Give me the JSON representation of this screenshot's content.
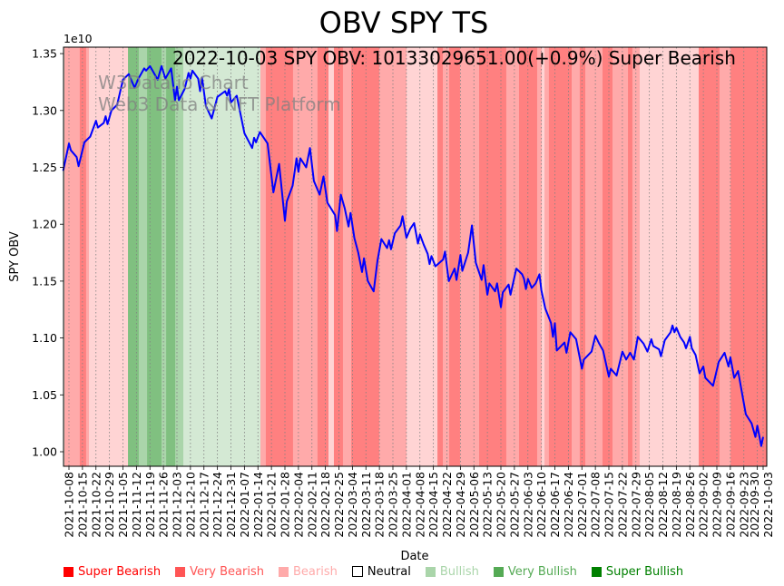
{
  "chart_data": {
    "type": "line",
    "title": "OBV SPY TS",
    "xlabel": "Date",
    "ylabel": "SPY OBV",
    "y_offset_label": "1e10",
    "ylim": [
      0.9872,
      1.3556
    ],
    "y_ticks": [
      "1.00",
      "1.05",
      "1.10",
      "1.15",
      "1.20",
      "1.25",
      "1.30",
      "1.35"
    ],
    "y_tick_values": [
      1.0,
      1.05,
      1.1,
      1.15,
      1.2,
      1.25,
      1.3,
      1.35
    ],
    "x_origin_date": "2021-10-08",
    "x_unit": "days since 2021-10-08",
    "xlim_days": [
      -2.8,
      362
    ],
    "x_tick_labels": [
      "2021-10-08",
      "2021-10-15",
      "2021-10-22",
      "2021-10-29",
      "2021-11-05",
      "2021-11-12",
      "2021-11-19",
      "2021-11-26",
      "2021-12-03",
      "2021-12-10",
      "2021-12-17",
      "2021-12-24",
      "2021-12-31",
      "2022-01-07",
      "2022-01-14",
      "2022-01-21",
      "2022-01-28",
      "2022-02-04",
      "2022-02-11",
      "2022-02-18",
      "2022-02-25",
      "2022-03-04",
      "2022-03-11",
      "2022-03-18",
      "2022-03-25",
      "2022-04-01",
      "2022-04-08",
      "2022-04-15",
      "2022-04-22",
      "2022-04-29",
      "2022-05-06",
      "2022-05-13",
      "2022-05-20",
      "2022-05-27",
      "2022-06-03",
      "2022-06-10",
      "2022-06-17",
      "2022-06-24",
      "2022-07-01",
      "2022-07-08",
      "2022-07-15",
      "2022-07-22",
      "2022-07-29",
      "2022-08-05",
      "2022-08-12",
      "2022-08-19",
      "2022-08-26",
      "2022-09-02",
      "2022-09-09",
      "2022-09-16",
      "2022-09-23",
      "2022-09-30",
      "2022-10-03"
    ],
    "x_tick_days": [
      0,
      7,
      14,
      21,
      28,
      35,
      42,
      49,
      56,
      63,
      70,
      77,
      84,
      91,
      98,
      105,
      112,
      119,
      126,
      133,
      140,
      147,
      154,
      161,
      168,
      175,
      182,
      189,
      196,
      203,
      210,
      217,
      224,
      231,
      238,
      245,
      252,
      259,
      266,
      273,
      280,
      287,
      294,
      301,
      308,
      315,
      322,
      329,
      336,
      343,
      350,
      357,
      360
    ],
    "grid": "vertical dotted at x ticks",
    "series": [
      {
        "name": "SPY OBV",
        "color": "#0000ff",
        "x_days": [
          -3,
          0,
          1,
          4,
          5,
          8,
          11,
          14,
          15,
          18,
          19,
          20,
          22,
          25,
          28,
          31,
          34,
          36,
          39,
          40,
          42,
          46,
          48,
          50,
          53,
          55,
          56,
          57,
          60,
          62,
          63,
          64,
          67,
          68,
          69,
          71,
          74,
          77,
          81,
          82,
          83,
          84,
          87,
          91,
          95,
          96,
          97,
          99,
          103,
          106,
          109,
          112,
          113,
          116,
          118,
          119,
          120,
          123,
          125,
          127,
          130,
          132,
          134,
          138,
          139,
          141,
          143,
          145,
          146,
          148,
          150,
          152,
          153,
          155,
          158,
          160,
          162,
          165,
          166,
          167,
          169,
          172,
          173,
          175,
          177,
          179,
          181,
          182,
          184,
          186,
          187,
          188,
          190,
          194,
          195,
          197,
          200,
          201,
          203,
          204,
          207,
          209,
          211,
          214,
          215,
          217,
          218,
          221,
          222,
          224,
          225,
          228,
          229,
          232,
          235,
          236,
          237,
          238,
          240,
          242,
          244,
          245,
          247,
          250,
          251,
          252,
          253,
          257,
          258,
          260,
          263,
          266,
          267,
          271,
          273,
          275,
          277,
          280,
          281,
          284,
          287,
          289,
          291,
          293,
          295,
          298,
          300,
          302,
          303,
          306,
          307,
          309,
          312,
          313,
          314,
          315,
          317,
          319,
          320,
          322,
          323,
          325,
          327,
          329,
          330,
          334,
          337,
          340,
          342,
          343,
          345,
          347,
          351,
          354,
          356,
          357,
          359,
          360
        ],
        "values": [
          1.247,
          1.271,
          1.265,
          1.259,
          1.251,
          1.272,
          1.277,
          1.291,
          1.285,
          1.289,
          1.295,
          1.288,
          1.3,
          1.305,
          1.327,
          1.332,
          1.32,
          1.328,
          1.337,
          1.335,
          1.339,
          1.327,
          1.339,
          1.328,
          1.337,
          1.309,
          1.321,
          1.309,
          1.319,
          1.333,
          1.328,
          1.335,
          1.328,
          1.317,
          1.329,
          1.304,
          1.293,
          1.312,
          1.317,
          1.313,
          1.319,
          1.307,
          1.313,
          1.28,
          1.267,
          1.276,
          1.272,
          1.281,
          1.271,
          1.228,
          1.253,
          1.203,
          1.22,
          1.234,
          1.258,
          1.246,
          1.258,
          1.25,
          1.267,
          1.238,
          1.226,
          1.242,
          1.219,
          1.208,
          1.194,
          1.226,
          1.214,
          1.198,
          1.21,
          1.188,
          1.175,
          1.158,
          1.17,
          1.15,
          1.141,
          1.168,
          1.187,
          1.179,
          1.186,
          1.178,
          1.192,
          1.199,
          1.207,
          1.188,
          1.196,
          1.201,
          1.183,
          1.191,
          1.182,
          1.174,
          1.165,
          1.172,
          1.163,
          1.169,
          1.176,
          1.15,
          1.161,
          1.151,
          1.173,
          1.159,
          1.175,
          1.199,
          1.166,
          1.151,
          1.164,
          1.138,
          1.148,
          1.141,
          1.148,
          1.127,
          1.14,
          1.147,
          1.138,
          1.161,
          1.156,
          1.152,
          1.143,
          1.152,
          1.144,
          1.148,
          1.156,
          1.142,
          1.126,
          1.113,
          1.101,
          1.113,
          1.089,
          1.096,
          1.087,
          1.105,
          1.099,
          1.073,
          1.081,
          1.088,
          1.102,
          1.095,
          1.089,
          1.066,
          1.073,
          1.067,
          1.088,
          1.081,
          1.087,
          1.081,
          1.101,
          1.095,
          1.088,
          1.099,
          1.093,
          1.09,
          1.084,
          1.098,
          1.105,
          1.111,
          1.105,
          1.109,
          1.101,
          1.096,
          1.091,
          1.101,
          1.091,
          1.085,
          1.069,
          1.075,
          1.065,
          1.058,
          1.079,
          1.087,
          1.075,
          1.083,
          1.065,
          1.071,
          1.033,
          1.025,
          1.013,
          1.023,
          1.005,
          1.013
        ]
      }
    ],
    "sentiment_colors": {
      "Super Bearish": "#ff8080",
      "Very Bearish": "#ffaaaa",
      "Bearish": "#ffd4d4",
      "Bullish": "#d4e9d4",
      "Very Bullish": "#aad5aa",
      "Super Bullish": "#80c080"
    },
    "sentiment_bands": [
      {
        "start": -2.8,
        "end": -2.4,
        "level": "Bullish"
      },
      {
        "start": -2.4,
        "end": 5.6,
        "level": "Very Bearish"
      },
      {
        "start": 5.6,
        "end": 8.9,
        "level": "Super Bearish"
      },
      {
        "start": 8.9,
        "end": 10.4,
        "level": "Very Bearish"
      },
      {
        "start": 10.4,
        "end": 30.6,
        "level": "Bearish"
      },
      {
        "start": 30.6,
        "end": 36.2,
        "level": "Super Bullish"
      },
      {
        "start": 36.2,
        "end": 40.5,
        "level": "Very Bullish"
      },
      {
        "start": 40.5,
        "end": 48,
        "level": "Super Bullish"
      },
      {
        "start": 48,
        "end": 50.4,
        "level": "Very Bullish"
      },
      {
        "start": 50.4,
        "end": 55.1,
        "level": "Super Bullish"
      },
      {
        "start": 55.1,
        "end": 59.3,
        "level": "Very Bullish"
      },
      {
        "start": 59.3,
        "end": 99.3,
        "level": "Bullish"
      },
      {
        "start": 99.3,
        "end": 102.1,
        "level": "Very Bearish"
      },
      {
        "start": 102.1,
        "end": 116.2,
        "level": "Super Bearish"
      },
      {
        "start": 116.2,
        "end": 128.9,
        "level": "Very Bearish"
      },
      {
        "start": 128.9,
        "end": 134.6,
        "level": "Super Bearish"
      },
      {
        "start": 134.6,
        "end": 137.4,
        "level": "Bearish"
      },
      {
        "start": 137.4,
        "end": 142.1,
        "level": "Super Bearish"
      },
      {
        "start": 142.1,
        "end": 146.4,
        "level": "Very Bearish"
      },
      {
        "start": 146.4,
        "end": 160.9,
        "level": "Super Bearish"
      },
      {
        "start": 160.9,
        "end": 175.1,
        "level": "Very Bearish"
      },
      {
        "start": 175.1,
        "end": 191.1,
        "level": "Bearish"
      },
      {
        "start": 191.1,
        "end": 193.9,
        "level": "Super Bearish"
      },
      {
        "start": 193.9,
        "end": 197.2,
        "level": "Very Bearish"
      },
      {
        "start": 197.2,
        "end": 202.8,
        "level": "Super Bearish"
      },
      {
        "start": 202.8,
        "end": 212.7,
        "level": "Very Bearish"
      },
      {
        "start": 212.7,
        "end": 226.8,
        "level": "Super Bearish"
      },
      {
        "start": 226.8,
        "end": 233.4,
        "level": "Very Bearish"
      },
      {
        "start": 233.4,
        "end": 242.8,
        "level": "Super Bearish"
      },
      {
        "start": 242.8,
        "end": 245.2,
        "level": "Very Bearish"
      },
      {
        "start": 245.2,
        "end": 246.6,
        "level": "Bearish"
      },
      {
        "start": 246.6,
        "end": 248.9,
        "level": "Very Bearish"
      },
      {
        "start": 248.9,
        "end": 260.7,
        "level": "Super Bearish"
      },
      {
        "start": 260.7,
        "end": 264.9,
        "level": "Very Bearish"
      },
      {
        "start": 264.9,
        "end": 267.8,
        "level": "Super Bearish"
      },
      {
        "start": 267.8,
        "end": 276.7,
        "level": "Very Bearish"
      },
      {
        "start": 276.7,
        "end": 281.9,
        "level": "Super Bearish"
      },
      {
        "start": 281.9,
        "end": 289.9,
        "level": "Very Bearish"
      },
      {
        "start": 289.9,
        "end": 292.2,
        "level": "Super Bearish"
      },
      {
        "start": 292.2,
        "end": 296,
        "level": "Very Bearish"
      },
      {
        "start": 296,
        "end": 326.6,
        "level": "Bearish"
      },
      {
        "start": 326.6,
        "end": 337.4,
        "level": "Super Bearish"
      },
      {
        "start": 337.4,
        "end": 343.1,
        "level": "Very Bearish"
      },
      {
        "start": 343.1,
        "end": 362,
        "level": "Super Bearish"
      }
    ],
    "annotation": "2022-10-03 SPY OBV: 10133029651.00(+0.9%) Super Bearish",
    "watermark": [
      "W3Data.io Chart",
      "Web3 Data & NFT Platform"
    ],
    "legend_position": "bottom",
    "legend": [
      {
        "label": "Super Bearish",
        "color": "#ff0000",
        "text_color": "#ff0000"
      },
      {
        "label": "Very Bearish",
        "color": "#ff5555",
        "text_color": "#ff5555"
      },
      {
        "label": "Bearish",
        "color": "#ffaaaa",
        "text_color": "#ffaaaa"
      },
      {
        "label": "Neutral",
        "color": "#ffffff",
        "text_color": "#000000"
      },
      {
        "label": "Bullish",
        "color": "#aad5aa",
        "text_color": "#aad5aa"
      },
      {
        "label": "Very Bullish",
        "color": "#55aa55",
        "text_color": "#55aa55"
      },
      {
        "label": "Super Bullish",
        "color": "#008000",
        "text_color": "#008000"
      }
    ]
  }
}
